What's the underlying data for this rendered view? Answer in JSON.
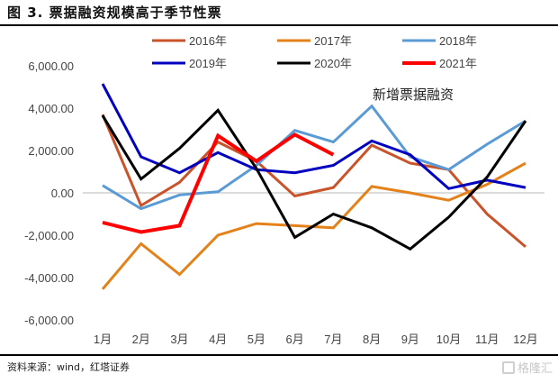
{
  "page": {
    "title": "图 3. 票据融资规模高于季节性票",
    "source": "资料来源：wind，红塔证券",
    "watermark": "格隆汇"
  },
  "chart_data": {
    "type": "line",
    "title": "图 3. 票据融资规模高于季节性票",
    "xlabel": "",
    "ylabel": "",
    "ylim": [
      -6000,
      6000
    ],
    "yticks": [
      6000,
      4000,
      2000,
      0,
      -2000,
      -4000,
      -6000
    ],
    "ytick_labels": [
      "6,000.00",
      "4,000.00",
      "2,000.00",
      "0.00",
      "-2,000.00",
      "-4,000.00",
      "-6,000.00"
    ],
    "categories": [
      "1月",
      "2月",
      "3月",
      "4月",
      "5月",
      "6月",
      "7月",
      "8月",
      "9月",
      "10月",
      "11月",
      "12月"
    ],
    "grid": false,
    "legend_position": "top",
    "annotation": "新增票据融资",
    "series": [
      {
        "name": "2016年",
        "color": "#C9532A",
        "width": 3,
        "values": [
          3700,
          -600,
          500,
          2400,
          1500,
          -150,
          250,
          2250,
          1400,
          1100,
          -1000,
          -2550
        ]
      },
      {
        "name": "2017年",
        "color": "#E3821B",
        "width": 3,
        "values": [
          -4550,
          -2400,
          -3850,
          -2000,
          -1450,
          -1550,
          -1650,
          300,
          0,
          -350,
          400,
          1400
        ]
      },
      {
        "name": "2018年",
        "color": "#5B9BD5",
        "width": 3,
        "values": [
          350,
          -750,
          -100,
          50,
          1300,
          2950,
          2400,
          4100,
          1700,
          1100,
          2300,
          3400
        ]
      },
      {
        "name": "2019年",
        "color": "#0000C0",
        "width": 3,
        "values": [
          5150,
          1700,
          950,
          1900,
          1100,
          950,
          1300,
          2450,
          1800,
          200,
          600,
          250
        ]
      },
      {
        "name": "2020年",
        "color": "#000000",
        "width": 3,
        "values": [
          3650,
          650,
          2100,
          3900,
          1150,
          -2100,
          -1000,
          -1650,
          -2650,
          -1150,
          750,
          3400
        ]
      },
      {
        "name": "2021年",
        "color": "#FF0000",
        "width": 4,
        "values": [
          -1400,
          -1850,
          -1550,
          2700,
          1500,
          2750,
          1800
        ]
      }
    ]
  }
}
